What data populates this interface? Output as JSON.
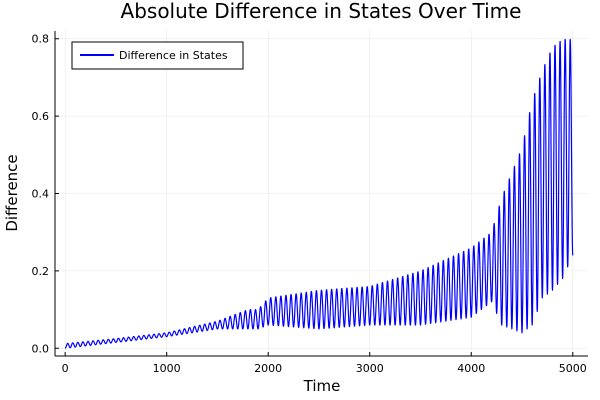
{
  "chart_data": {
    "type": "line",
    "title": "Absolute Difference in States Over Time",
    "xlabel": "Time",
    "ylabel": "Difference",
    "xlim": [
      -100,
      5150
    ],
    "ylim": [
      -0.02,
      0.82
    ],
    "xticks": [
      0,
      1000,
      2000,
      3000,
      4000,
      5000
    ],
    "yticks": [
      0.0,
      0.2,
      0.4,
      0.6,
      0.8
    ],
    "ytick_labels": [
      "0.0",
      "0.2",
      "0.4",
      "0.6",
      "0.8"
    ],
    "grid": true,
    "legend_position": "top-left",
    "series": [
      {
        "name": "Difference in States",
        "color": "#0000ff",
        "oscillation_period": 50,
        "x_end": 5000,
        "envelope": {
          "x": [
            0,
            500,
            1000,
            1500,
            1800,
            1900,
            2000,
            2500,
            3000,
            3500,
            4000,
            4200,
            4300,
            4500,
            4600,
            4700,
            4800,
            4900,
            5000
          ],
          "upper": [
            0.012,
            0.025,
            0.04,
            0.07,
            0.1,
            0.1,
            0.13,
            0.15,
            0.16,
            0.2,
            0.26,
            0.3,
            0.39,
            0.52,
            0.64,
            0.72,
            0.78,
            0.8,
            0.8
          ],
          "lower": [
            0.0,
            0.015,
            0.03,
            0.05,
            0.05,
            0.05,
            0.06,
            0.05,
            0.06,
            0.06,
            0.08,
            0.12,
            0.06,
            0.04,
            0.06,
            0.13,
            0.15,
            0.18,
            0.24
          ]
        }
      }
    ]
  }
}
